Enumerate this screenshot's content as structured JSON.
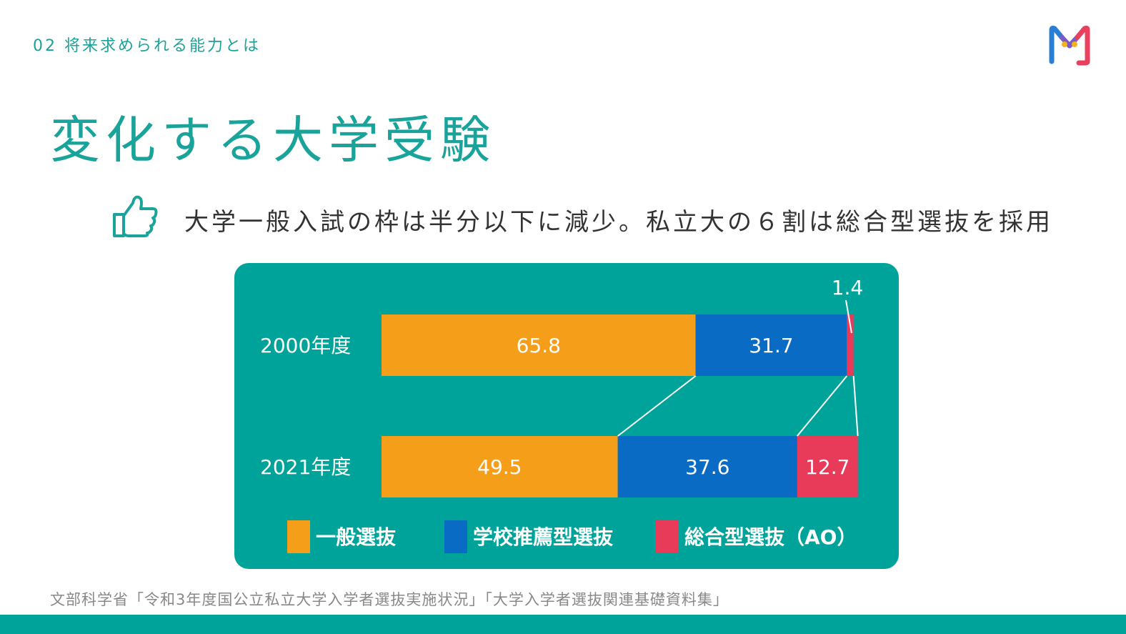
{
  "header": {
    "section_label": "02 将来求められる能力とは",
    "title": "変化する大学受験"
  },
  "headline": {
    "icon": "thumbs-up-icon",
    "text": "大学一般入試の枠は半分以下に減少。私立大の６割は総合型選抜を採用"
  },
  "logo": {
    "icon": "m-logo-icon"
  },
  "colors": {
    "accent": "#1aa39a",
    "panel": "#00a39a",
    "general": "#f59e1a",
    "recommend": "#0a6bc4",
    "ao": "#e83b5a"
  },
  "chart_data": {
    "type": "bar",
    "orientation": "horizontal",
    "stacked": true,
    "categories": [
      "2000年度",
      "2021年度"
    ],
    "series": [
      {
        "name": "一般選抜",
        "values": [
          65.8,
          49.5
        ]
      },
      {
        "name": "学校推薦型選抜",
        "values": [
          31.7,
          37.6
        ]
      },
      {
        "name": "総合型選抜（AO）",
        "values": [
          1.4,
          12.7
        ]
      }
    ],
    "xlim": [
      0,
      100
    ],
    "legend_position": "bottom",
    "title": "",
    "xlabel": "",
    "ylabel": ""
  },
  "source": {
    "text": "文部科学省「令和3年度国公立私立大学入学者選抜実施状況」「大学入学者選抜関連基礎資料集」"
  }
}
